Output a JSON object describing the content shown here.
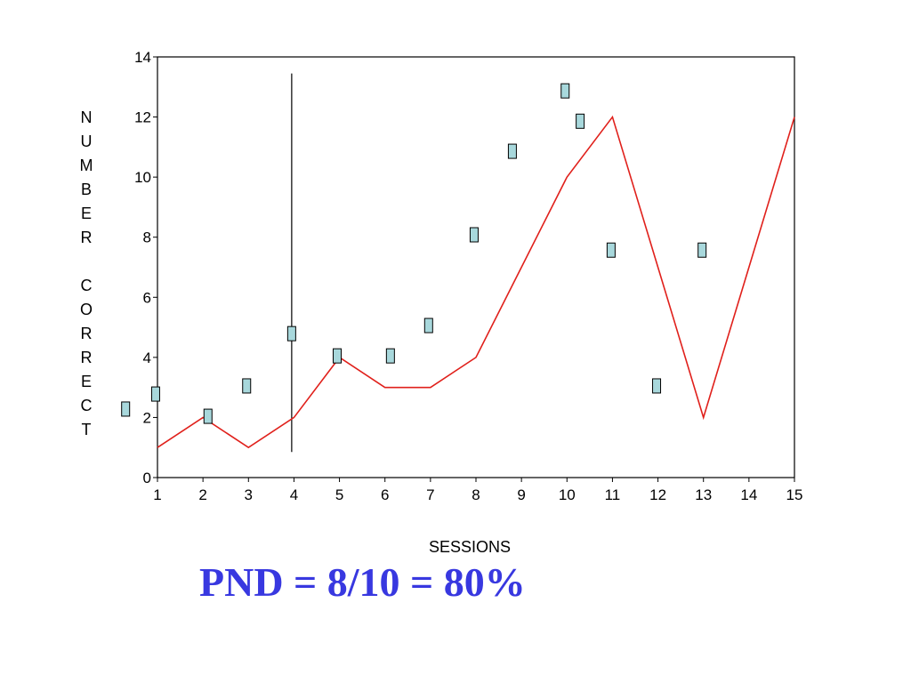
{
  "chart_data": {
    "type": "line",
    "xlabel": "SESSIONS",
    "ylabel": "NUMBER CORRECT",
    "annotation": "PND = 8/10 = 80%",
    "xlim": [
      1,
      15
    ],
    "ylim": [
      0,
      14
    ],
    "xticks": [
      1,
      2,
      3,
      4,
      5,
      6,
      7,
      8,
      9,
      10,
      11,
      12,
      13,
      14,
      15
    ],
    "yticks": [
      0,
      2,
      4,
      6,
      8,
      10,
      12,
      14
    ],
    "phase_line": {
      "x": 3.95,
      "y": [
        0.85,
        13.45
      ],
      "color": "#000000"
    },
    "series": [
      {
        "style": "line",
        "color": "#e0201b",
        "x": [
          1,
          2,
          3,
          4,
          5,
          6,
          7,
          8,
          9,
          10,
          11,
          12,
          13,
          14,
          15
        ],
        "values": [
          1,
          2,
          1,
          2,
          4,
          3,
          3,
          4,
          7,
          10,
          12,
          7,
          2,
          7,
          12
        ]
      },
      {
        "style": "markers",
        "color": "#a8d8dc",
        "x": [
          0.3,
          0.96,
          2.11,
          2.96,
          3.95,
          4.95,
          6.12,
          6.96,
          7.96,
          8.8,
          9.96,
          10.29,
          10.97,
          11.97,
          12.97
        ],
        "values": [
          2.28,
          2.78,
          2.04,
          3.05,
          4.79,
          4.05,
          4.05,
          5.06,
          8.08,
          10.86,
          12.87,
          11.86,
          7.57,
          3.05,
          7.57
        ]
      }
    ]
  }
}
